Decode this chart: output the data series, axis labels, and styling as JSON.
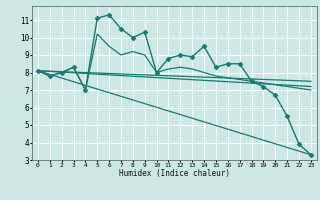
{
  "xlabel": "Humidex (Indice chaleur)",
  "background_color": "#cce8e4",
  "grid_color": "#ffffff",
  "line_color": "#1a7a6e",
  "xlim": [
    -0.5,
    23.5
  ],
  "ylim": [
    3,
    11.8
  ],
  "yticks": [
    3,
    4,
    5,
    6,
    7,
    8,
    9,
    10,
    11
  ],
  "xticks": [
    0,
    1,
    2,
    3,
    4,
    5,
    6,
    7,
    8,
    9,
    10,
    11,
    12,
    13,
    14,
    15,
    16,
    17,
    18,
    19,
    20,
    21,
    22,
    23
  ],
  "lines": [
    {
      "x": [
        0,
        1,
        2,
        3,
        4,
        5,
        6,
        7,
        8,
        9,
        10,
        11,
        12,
        13,
        14,
        15,
        16,
        17,
        18,
        19,
        20,
        21,
        22,
        23
      ],
      "y": [
        8.1,
        7.8,
        8.0,
        8.3,
        7.0,
        11.1,
        11.3,
        10.5,
        10.0,
        10.3,
        8.0,
        8.8,
        9.0,
        8.9,
        9.5,
        8.3,
        8.5,
        8.5,
        7.5,
        7.2,
        6.7,
        5.5,
        3.9,
        3.3
      ],
      "marker": "D",
      "markersize": 2.5,
      "linewidth": 1.0
    },
    {
      "x": [
        0,
        1,
        2,
        3,
        4,
        5,
        6,
        7,
        8,
        9,
        10,
        11,
        12,
        13,
        14,
        15,
        16,
        17,
        18,
        19,
        20,
        21,
        22,
        23
      ],
      "y": [
        8.1,
        7.8,
        8.0,
        8.3,
        7.0,
        10.2,
        9.5,
        9.0,
        9.2,
        9.0,
        8.0,
        8.2,
        8.3,
        8.2,
        8.0,
        7.8,
        7.7,
        7.6,
        7.5,
        7.4,
        7.3,
        7.2,
        7.1,
        7.0
      ],
      "marker": "D",
      "markersize": 0,
      "linewidth": 0.9
    },
    {
      "x": [
        0,
        23
      ],
      "y": [
        8.1,
        7.5
      ],
      "marker": "None",
      "markersize": 0,
      "linewidth": 0.9
    },
    {
      "x": [
        0,
        23
      ],
      "y": [
        8.1,
        3.3
      ],
      "marker": "None",
      "markersize": 0,
      "linewidth": 0.9
    },
    {
      "x": [
        0,
        23
      ],
      "y": [
        8.1,
        7.2
      ],
      "marker": "None",
      "markersize": 0,
      "linewidth": 0.9
    }
  ]
}
